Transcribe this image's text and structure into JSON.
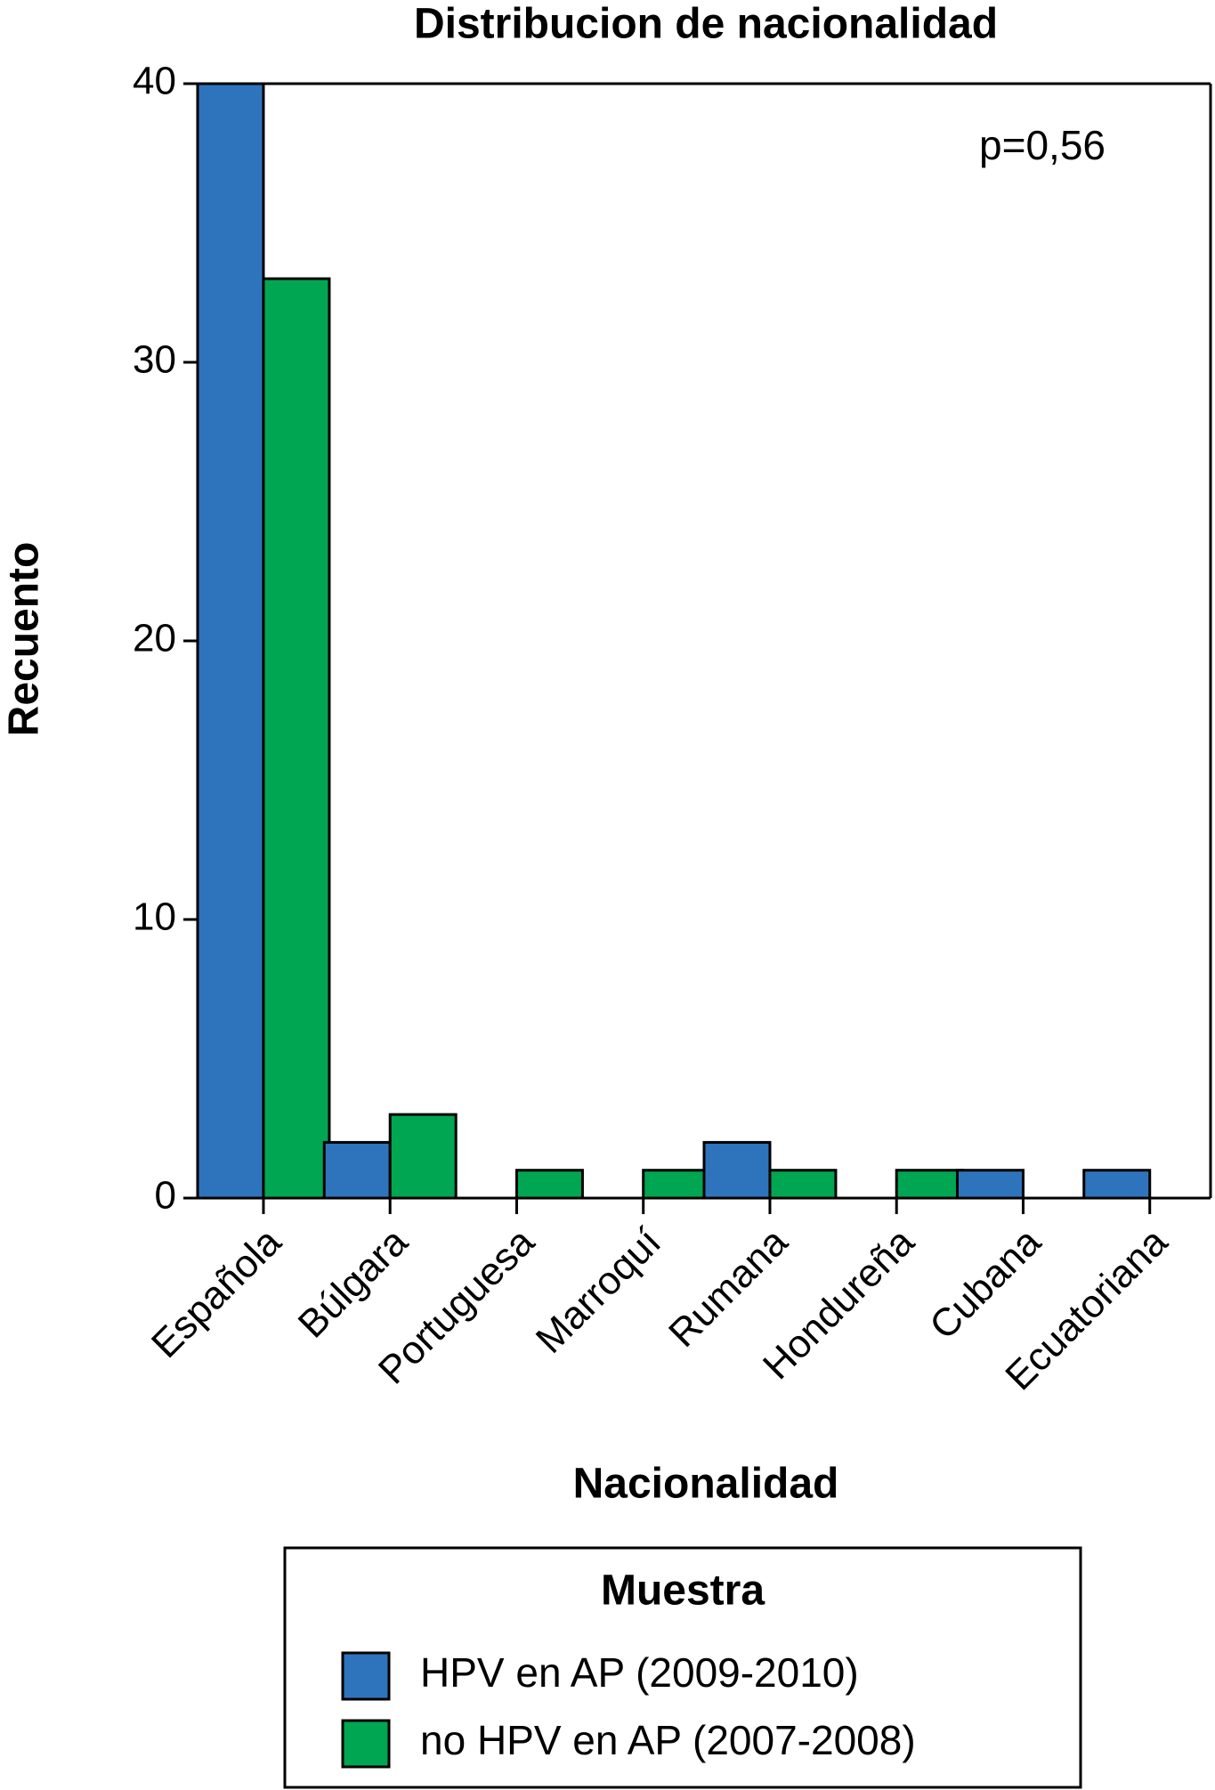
{
  "chart_data": {
    "type": "bar",
    "title": "Distribucion de nacionalidad",
    "x_label": "Nacionalidad",
    "y_label": "Recuento",
    "annotation": "p=0,56",
    "legend_title": "Muestra",
    "categories": [
      "Española",
      "Búlgara",
      "Portuguesa",
      "Marroquí",
      "Rumana",
      "Hondureña",
      "Cubana",
      "Ecuatoriana"
    ],
    "series": [
      {
        "name": "HPV en AP (2009-2010)",
        "color": "#2e74bd",
        "values": [
          40,
          2,
          0,
          0,
          2,
          0,
          1,
          1
        ]
      },
      {
        "name": "no HPV en AP (2007-2008)",
        "color": "#00a651",
        "values": [
          33,
          3,
          1,
          1,
          1,
          1,
          0,
          0
        ]
      }
    ],
    "ylim": [
      0,
      40
    ],
    "yticks": [
      0,
      10,
      20,
      30,
      40
    ],
    "grid": false
  }
}
